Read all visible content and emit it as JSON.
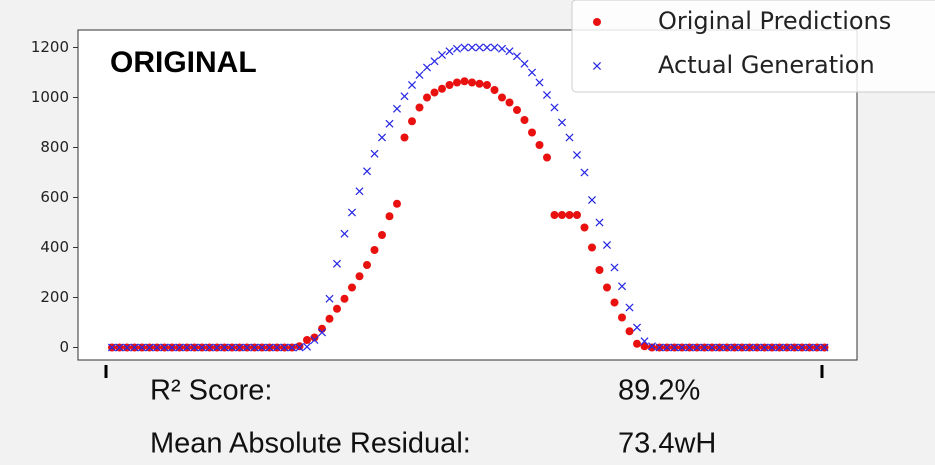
{
  "chart_data": {
    "type": "scatter",
    "panel_label": "ORIGINAL",
    "legend": "upper right",
    "ylim": [
      -50,
      1270
    ],
    "yticks": [
      0,
      200,
      400,
      600,
      800,
      1000,
      1200
    ],
    "series": [
      {
        "name": "Original Predictions",
        "color": "#e8110f",
        "marker": "circle",
        "values": [
          0,
          0,
          0,
          0,
          0,
          0,
          0,
          0,
          0,
          0,
          0,
          0,
          0,
          0,
          0,
          0,
          0,
          0,
          0,
          0,
          0,
          0,
          0,
          0,
          0,
          5,
          30,
          40,
          75,
          115,
          155,
          195,
          240,
          285,
          330,
          390,
          450,
          525,
          575,
          840,
          905,
          960,
          1000,
          1020,
          1035,
          1050,
          1060,
          1065,
          1060,
          1055,
          1050,
          1030,
          1000,
          980,
          950,
          910,
          860,
          810,
          760,
          530,
          530,
          530,
          530,
          480,
          400,
          310,
          240,
          180,
          120,
          65,
          15,
          5,
          0,
          0,
          0,
          0,
          0,
          0,
          0,
          0,
          0,
          0,
          0,
          0,
          0,
          0,
          0,
          0,
          0,
          0,
          0,
          0,
          0,
          0,
          0,
          0
        ]
      },
      {
        "name": "Actual Generation",
        "color": "#2727e6",
        "marker": "x",
        "values": [
          0,
          0,
          0,
          0,
          0,
          0,
          0,
          0,
          0,
          0,
          0,
          0,
          0,
          0,
          0,
          0,
          0,
          0,
          0,
          0,
          0,
          0,
          0,
          0,
          0,
          0,
          3,
          30,
          60,
          195,
          335,
          455,
          540,
          625,
          705,
          775,
          840,
          895,
          955,
          1005,
          1050,
          1090,
          1120,
          1145,
          1170,
          1185,
          1195,
          1200,
          1200,
          1200,
          1200,
          1200,
          1195,
          1185,
          1165,
          1135,
          1100,
          1060,
          1010,
          960,
          900,
          840,
          770,
          700,
          590,
          500,
          410,
          320,
          245,
          160,
          80,
          25,
          5,
          0,
          0,
          0,
          0,
          0,
          0,
          0,
          0,
          0,
          0,
          0,
          0,
          0,
          0,
          0,
          0,
          0,
          0,
          0,
          0,
          0,
          0,
          0
        ]
      }
    ],
    "metrics": [
      {
        "label": "R² Score:",
        "value": "89.2%"
      },
      {
        "label": "Mean Absolute Residual:",
        "value": "73.4wH"
      }
    ]
  }
}
